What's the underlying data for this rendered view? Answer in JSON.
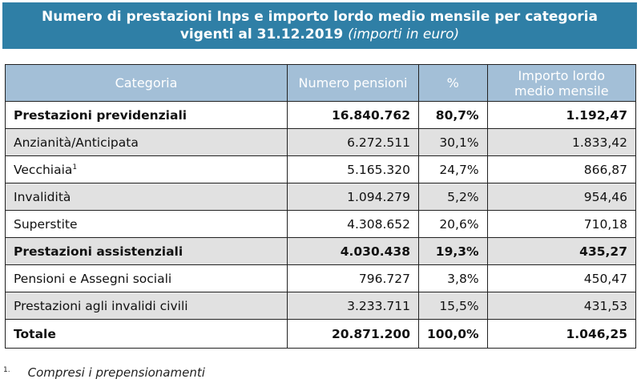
{
  "title": {
    "line1": "Numero di prestazioni Inps e importo lordo medio mensile per categoria",
    "line2_main": "vigenti al 31.12.2019 ",
    "line2_note": "(importi in euro)"
  },
  "table": {
    "headers": {
      "categoria": "Categoria",
      "numero": "Numero pensioni",
      "pct": "%",
      "importo_line1": "Importo lordo",
      "importo_line2": "medio mensile"
    },
    "rows": [
      {
        "label": "Prestazioni previdenziali",
        "numero": "16.840.762",
        "pct": "80,7%",
        "importo": "1.192,47"
      },
      {
        "label": "Anzianità/Anticipata",
        "numero": "6.272.511",
        "pct": "30,1%",
        "importo": "1.833,42"
      },
      {
        "label": "Vecchiaia",
        "footnote": "1",
        "numero": "5.165.320",
        "pct": "24,7%",
        "importo": "866,87"
      },
      {
        "label": "Invalidità",
        "numero": "1.094.279",
        "pct": "5,2%",
        "importo": "954,46"
      },
      {
        "label": "Superstite",
        "numero": "4.308.652",
        "pct": "20,6%",
        "importo": "710,18"
      },
      {
        "label": "Prestazioni assistenziali",
        "numero": "4.030.438",
        "pct": "19,3%",
        "importo": "435,27"
      },
      {
        "label": "Pensioni e Assegni sociali",
        "numero": "796.727",
        "pct": "3,8%",
        "importo": "450,47"
      },
      {
        "label": "Prestazioni agli invalidi civili",
        "numero": "3.233.711",
        "pct": "15,5%",
        "importo": "431,53"
      },
      {
        "label": "Totale",
        "numero": "20.871.200",
        "pct": "100,0%",
        "importo": "1.046,25"
      }
    ]
  },
  "footnote": {
    "mark": "1.",
    "text": "Compresi i prepensionamenti"
  },
  "colors": {
    "banner": "#2f7fa6",
    "header": "#a3bfd7",
    "grey_row": "#e1e1e1"
  }
}
